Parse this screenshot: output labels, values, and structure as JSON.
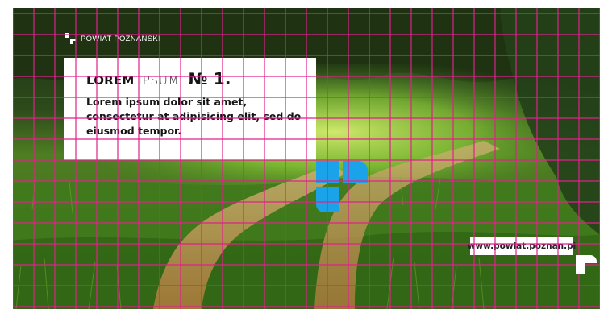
{
  "brand": {
    "name": "POWIAT POZNAŃSKI",
    "logo_icon": "powiat-logo-icon",
    "logo_color": "#ffffff"
  },
  "headline": {
    "word1": "LOREM",
    "word2": "IPSUM",
    "word3": "№ 1."
  },
  "body": {
    "text": "Lorem ipsum dolor sit amet, consectetur at adipisicing elit, sed do eiusmod tempor."
  },
  "footer": {
    "url": "www.powiat.poznan.pl",
    "corner_mark": "corner-p-mark-icon"
  },
  "decor": {
    "grid_color": "#e0218a",
    "blue_mark_color": "#1aa3e8",
    "blue_mark": "blue-p-shape-icon"
  }
}
